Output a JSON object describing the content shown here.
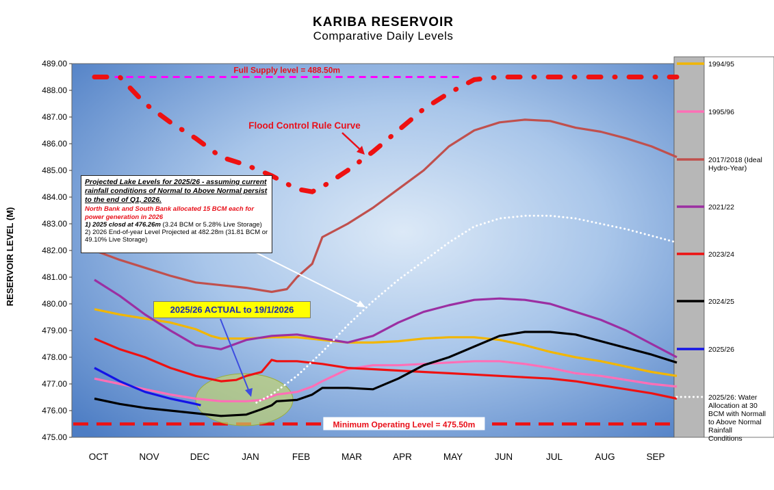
{
  "chart_data": {
    "type": "line",
    "title": "KARIBA RESERVOIR",
    "subtitle": "Comparative Daily Levels",
    "ylabel": "RESERVOIR LEVEL (M)",
    "xlabel": "",
    "ylim": [
      475.0,
      489.0
    ],
    "yticks": [
      "475.00",
      "476.00",
      "477.00",
      "478.00",
      "479.00",
      "480.00",
      "481.00",
      "482.00",
      "483.00",
      "484.00",
      "485.00",
      "486.00",
      "487.00",
      "488.00",
      "489.00"
    ],
    "categories": [
      "OCT",
      "NOV",
      "DEC",
      "JAN",
      "FEB",
      "MAR",
      "APR",
      "MAY",
      "JUN",
      "JUL",
      "AUG",
      "SEP"
    ],
    "grid": false,
    "legend_position": "right",
    "series": [
      {
        "name": "1994/95",
        "color": "#f2b600",
        "style": "solid",
        "x": [
          0,
          0.5,
          1,
          1.5,
          2,
          2.3,
          2.5,
          3,
          3.5,
          4,
          4.5,
          5,
          5.5,
          6,
          6.5,
          7,
          7.5,
          8,
          8.5,
          9,
          9.5,
          10,
          10.5,
          11,
          11.5
        ],
        "y": [
          479.8,
          479.6,
          479.45,
          479.3,
          479.05,
          478.8,
          478.7,
          478.7,
          478.75,
          478.75,
          478.65,
          478.55,
          478.55,
          478.6,
          478.7,
          478.75,
          478.75,
          478.65,
          478.45,
          478.2,
          478.0,
          477.85,
          477.65,
          477.45,
          477.3
        ]
      },
      {
        "name": "1995/96",
        "color": "#ff6fb6",
        "style": "solid",
        "x": [
          0,
          0.5,
          1,
          1.5,
          2,
          2.5,
          3,
          3.3,
          3.6,
          4,
          4.3,
          4.5,
          5,
          5.5,
          6,
          6.5,
          7,
          7.5,
          8,
          8.5,
          9,
          9.5,
          10,
          10.5,
          11,
          11.5
        ],
        "y": [
          477.2,
          477.0,
          476.8,
          476.6,
          476.45,
          476.35,
          476.35,
          476.4,
          476.6,
          476.7,
          476.9,
          477.1,
          477.55,
          477.7,
          477.7,
          477.75,
          477.8,
          477.85,
          477.85,
          477.75,
          477.6,
          477.4,
          477.3,
          477.15,
          477.0,
          476.9
        ]
      },
      {
        "name": "2017/2018 (Ideal Hydro-Year)",
        "color": "#c0504d",
        "style": "solid",
        "x": [
          0,
          0.5,
          1,
          1.5,
          2,
          2.5,
          3,
          3.5,
          3.8,
          4,
          4.3,
          4.5,
          5,
          5.5,
          6,
          6.5,
          7,
          7.5,
          8,
          8.5,
          9,
          9.5,
          10,
          10.5,
          11,
          11.5
        ],
        "y": [
          482.0,
          481.65,
          481.35,
          481.05,
          480.8,
          480.7,
          480.6,
          480.45,
          480.55,
          481.0,
          481.5,
          482.5,
          483.0,
          483.6,
          484.3,
          485.0,
          485.9,
          486.5,
          486.8,
          486.9,
          486.85,
          486.6,
          486.45,
          486.2,
          485.9,
          485.5
        ]
      },
      {
        "name": "2021/22",
        "color": "#9b2fa2",
        "style": "solid",
        "x": [
          0,
          0.5,
          1,
          1.5,
          2,
          2.5,
          3,
          3.5,
          4,
          4.5,
          5,
          5.5,
          6,
          6.5,
          7,
          7.5,
          8,
          8.5,
          9,
          9.5,
          10,
          10.5,
          11,
          11.5
        ],
        "y": [
          480.9,
          480.3,
          479.6,
          479.0,
          478.45,
          478.3,
          478.65,
          478.8,
          478.85,
          478.7,
          478.55,
          478.8,
          479.3,
          479.7,
          479.95,
          480.15,
          480.2,
          480.15,
          480.0,
          479.7,
          479.4,
          479.0,
          478.5,
          478.0
        ]
      },
      {
        "name": "2023/24",
        "color": "#ee1111",
        "style": "solid",
        "x": [
          0,
          0.5,
          1,
          1.5,
          2,
          2.5,
          2.8,
          3,
          3.3,
          3.5,
          3.6,
          4,
          4.5,
          5,
          5.5,
          6,
          6.5,
          7,
          7.5,
          8,
          8.5,
          9,
          9.5,
          10,
          10.5,
          11,
          11.5
        ],
        "y": [
          478.7,
          478.3,
          478.0,
          477.6,
          477.3,
          477.1,
          477.15,
          477.3,
          477.45,
          477.9,
          477.85,
          477.85,
          477.75,
          477.6,
          477.55,
          477.5,
          477.45,
          477.4,
          477.35,
          477.3,
          477.25,
          477.2,
          477.1,
          476.95,
          476.8,
          476.65,
          476.45
        ]
      },
      {
        "name": "2024/25",
        "color": "#000000",
        "style": "solid",
        "x": [
          0,
          0.5,
          1,
          1.5,
          2,
          2.5,
          3,
          3.3,
          3.5,
          3.6,
          4,
          4.3,
          4.5,
          5,
          5.5,
          6,
          6.5,
          7,
          7.5,
          8,
          8.5,
          9,
          9.5,
          10,
          10.5,
          11,
          11.5
        ],
        "y": [
          476.45,
          476.25,
          476.1,
          476.0,
          475.9,
          475.8,
          475.85,
          476.05,
          476.2,
          476.35,
          476.4,
          476.6,
          476.85,
          476.85,
          476.8,
          477.2,
          477.7,
          478.0,
          478.4,
          478.8,
          478.95,
          478.95,
          478.85,
          478.6,
          478.35,
          478.1,
          477.8
        ]
      },
      {
        "name": "2025/26",
        "color": "#1414e6",
        "style": "solid",
        "x": [
          0,
          0.5,
          1,
          1.5,
          2,
          2.1
        ],
        "y": [
          477.6,
          477.1,
          476.7,
          476.45,
          476.25,
          476.2
        ]
      },
      {
        "name": "2025/26: Water Allocation at 30 BCM with Normall to Above Normal Rainfall Conditions",
        "color": "#ffffff",
        "style": "dotted",
        "x": [
          3.2,
          3.5,
          4,
          4.5,
          5,
          5.5,
          6,
          6.5,
          7,
          7.5,
          8,
          8.5,
          9,
          9.5,
          10,
          10.5,
          11,
          11.5
        ],
        "y": [
          476.3,
          476.6,
          477.3,
          478.2,
          479.2,
          480.1,
          480.9,
          481.6,
          482.3,
          482.9,
          483.2,
          483.3,
          483.3,
          483.2,
          483.0,
          482.8,
          482.55,
          482.3
        ]
      }
    ],
    "reference_lines": [
      {
        "label": "Full Supply level = 488.50m",
        "value": 488.5,
        "color": "#ff00ff"
      },
      {
        "label": "Minimum  Operating Level = 475.50m",
        "value": 475.5,
        "color": "#ee1111"
      }
    ],
    "rule_curve": {
      "label": "Flood Control Rule Curve",
      "color": "#ee1111",
      "x": [
        0,
        0.5,
        1,
        1.5,
        2,
        2.5,
        3,
        3.5,
        4,
        4.3,
        4.6,
        5,
        5.5,
        6,
        6.5,
        7,
        7.5,
        8,
        8.5,
        9,
        9.5,
        10,
        10.5,
        11,
        11.5
      ],
      "y": [
        488.5,
        488.5,
        487.5,
        486.8,
        486.2,
        485.5,
        485.2,
        484.8,
        484.3,
        484.2,
        484.5,
        485.0,
        485.7,
        486.5,
        487.3,
        487.9,
        488.4,
        488.5,
        488.5,
        488.5,
        488.5,
        488.5,
        488.5,
        488.5,
        488.5
      ]
    },
    "annotations": {
      "projected_title": "Projected Lake Levels  for 2025/26 - assuming current rainfall conditions of Normal to Above Normal persist to the end of Q1, 2026.",
      "projected_red": "North Bank and South Bank allocated 15 BCM each for power generation in 2026",
      "projected_line1_lead": "1) 2025 closd at 476.26m",
      "projected_line1_rest": " (3.24 BCM or 5.28% Live Storage)",
      "projected_line2": "2) 2026 End-of-year Level Projected at 482.28m (31.81 BCM or 49.10% Live Storage)",
      "actual": "2025/26 ACTUAL to 19/1/2026"
    }
  }
}
